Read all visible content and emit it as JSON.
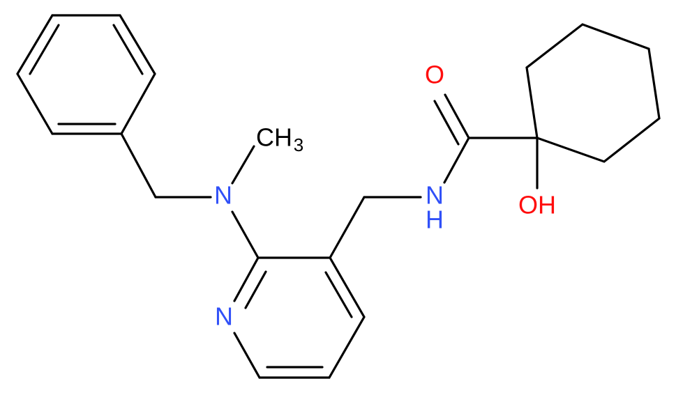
{
  "atoms": {
    "carbonyl_oxygen": "O",
    "hydroxyl": "OH",
    "amide_nitrogen": "N",
    "amide_hydrogen": "H",
    "amine_nitrogen": "N",
    "methyl": "CH",
    "methyl_subscript": "3",
    "pyridine_nitrogen": "N"
  }
}
